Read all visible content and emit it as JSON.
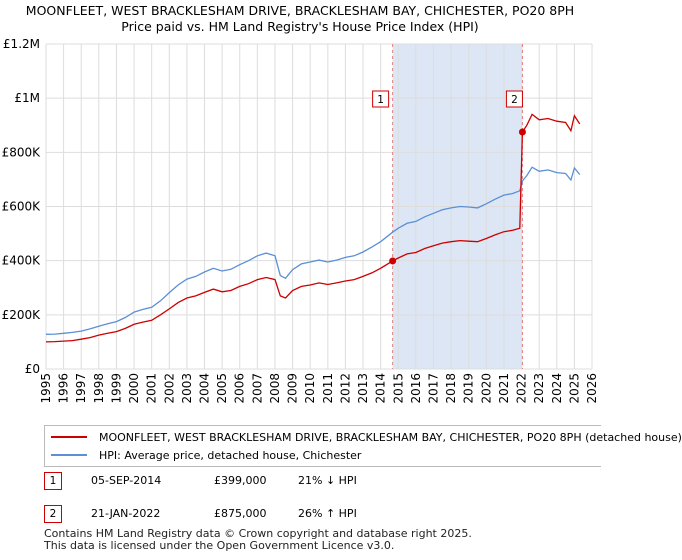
{
  "header": {
    "title": "MOONFLEET, WEST BRACKLESHAM DRIVE, BRACKLESHAM BAY, CHICHESTER, PO20 8PH",
    "subtitle": "Price paid vs. HM Land Registry's House Price Index (HPI)"
  },
  "colors": {
    "price_paid": "#cc0000",
    "hpi": "#5b8fd6",
    "shade": "#dce6f5",
    "grid": "#dddddd"
  },
  "chart_data": {
    "type": "line",
    "title": "MOONFLEET, WEST BRACKLESHAM DRIVE, BRACKLESHAM BAY, CHICHESTER, PO20 8PH",
    "subtitle": "Price paid vs. HM Land Registry's House Price Index (HPI)",
    "xlim": [
      1995,
      2026
    ],
    "ylim": [
      0,
      1200000
    ],
    "x_ticks": [
      1995,
      1996,
      1997,
      1998,
      1999,
      2000,
      2001,
      2002,
      2003,
      2004,
      2005,
      2006,
      2007,
      2008,
      2009,
      2010,
      2011,
      2012,
      2013,
      2014,
      2015,
      2016,
      2017,
      2018,
      2019,
      2020,
      2021,
      2022,
      2023,
      2024,
      2025,
      2026
    ],
    "y_ticks": [
      0,
      200000,
      400000,
      600000,
      800000,
      1000000,
      1200000
    ],
    "y_tick_labels": [
      "£0",
      "£200K",
      "£400K",
      "£600K",
      "£800K",
      "£1M",
      "£1.2M"
    ],
    "grid": true,
    "shaded_range": [
      2014.68,
      2022.05
    ],
    "series": [
      {
        "name": "MOONFLEET, WEST BRACKLESHAM DRIVE, BRACKLESHAM BAY, CHICHESTER, PO20 8PH (detached house)",
        "color": "#cc0000",
        "x": [
          1995,
          1995.5,
          1996,
          1996.5,
          1997,
          1997.5,
          1998,
          1998.5,
          1999,
          1999.5,
          2000,
          2000.5,
          2001,
          2001.5,
          2002,
          2002.5,
          2003,
          2003.5,
          2004,
          2004.5,
          2005,
          2005.5,
          2006,
          2006.5,
          2007,
          2007.5,
          2008,
          2008.3,
          2008.6,
          2009,
          2009.5,
          2010,
          2010.5,
          2011,
          2011.5,
          2012,
          2012.5,
          2013,
          2013.5,
          2014,
          2014.68,
          2015,
          2015.5,
          2016,
          2016.5,
          2017,
          2017.5,
          2018,
          2018.5,
          2019,
          2019.5,
          2020,
          2020.5,
          2021,
          2021.5,
          2021.9,
          2022.05,
          2022.3,
          2022.6,
          2023,
          2023.5,
          2024,
          2024.5,
          2024.8,
          2025,
          2025.3
        ],
        "values": [
          100000,
          101000,
          103000,
          105000,
          110000,
          116000,
          125000,
          132000,
          138000,
          150000,
          165000,
          173000,
          180000,
          200000,
          222000,
          245000,
          262000,
          270000,
          283000,
          295000,
          285000,
          290000,
          305000,
          315000,
          330000,
          338000,
          330000,
          270000,
          262000,
          290000,
          305000,
          310000,
          318000,
          312000,
          318000,
          325000,
          330000,
          342000,
          355000,
          372000,
          399000,
          410000,
          425000,
          430000,
          445000,
          455000,
          465000,
          470000,
          474000,
          472000,
          470000,
          482000,
          495000,
          507000,
          512000,
          520000,
          875000,
          900000,
          940000,
          920000,
          925000,
          915000,
          910000,
          880000,
          935000,
          905000
        ]
      },
      {
        "name": "HPI: Average price, detached house, Chichester",
        "color": "#5b8fd6",
        "x": [
          1995,
          1995.5,
          1996,
          1996.5,
          1997,
          1997.5,
          1998,
          1998.5,
          1999,
          1999.5,
          2000,
          2000.5,
          2001,
          2001.5,
          2002,
          2002.5,
          2003,
          2003.5,
          2004,
          2004.5,
          2005,
          2005.5,
          2006,
          2006.5,
          2007,
          2007.5,
          2008,
          2008.3,
          2008.6,
          2009,
          2009.5,
          2010,
          2010.5,
          2011,
          2011.5,
          2012,
          2012.5,
          2013,
          2013.5,
          2014,
          2014.68,
          2015,
          2015.5,
          2016,
          2016.5,
          2017,
          2017.5,
          2018,
          2018.5,
          2019,
          2019.5,
          2020,
          2020.5,
          2021,
          2021.5,
          2021.9,
          2022.05,
          2022.3,
          2022.6,
          2023,
          2023.5,
          2024,
          2024.5,
          2024.8,
          2025,
          2025.3
        ],
        "values": [
          128000,
          129000,
          132000,
          135000,
          140000,
          148000,
          158000,
          167000,
          175000,
          190000,
          210000,
          220000,
          228000,
          252000,
          282000,
          310000,
          332000,
          342000,
          358000,
          372000,
          362000,
          368000,
          385000,
          400000,
          418000,
          428000,
          418000,
          345000,
          335000,
          367000,
          388000,
          395000,
          402000,
          395000,
          402000,
          412000,
          418000,
          432000,
          450000,
          470000,
          505000,
          520000,
          538000,
          545000,
          562000,
          575000,
          588000,
          595000,
          600000,
          598000,
          595000,
          610000,
          627000,
          642000,
          648000,
          658000,
          694000,
          714000,
          745000,
          730000,
          735000,
          725000,
          722000,
          698000,
          742000,
          718000
        ]
      }
    ],
    "annotations": [
      {
        "label": "1",
        "x": 2014.68,
        "y": 399000
      },
      {
        "label": "2",
        "x": 2022.05,
        "y": 875000
      }
    ]
  },
  "legend": {
    "items": [
      {
        "label": "MOONFLEET, WEST BRACKLESHAM DRIVE, BRACKLESHAM BAY, CHICHESTER, PO20 8PH (detached house)"
      },
      {
        "label": "HPI: Average price, detached house, Chichester"
      }
    ]
  },
  "sales": [
    {
      "num": "1",
      "date": "05-SEP-2014",
      "price": "£399,000",
      "hpi_change": "21% ↓ HPI"
    },
    {
      "num": "2",
      "date": "21-JAN-2022",
      "price": "£875,000",
      "hpi_change": "26% ↑ HPI"
    }
  ],
  "footer": {
    "line1": "Contains HM Land Registry data © Crown copyright and database right 2025.",
    "line2": "This data is licensed under the Open Government Licence v3.0."
  }
}
